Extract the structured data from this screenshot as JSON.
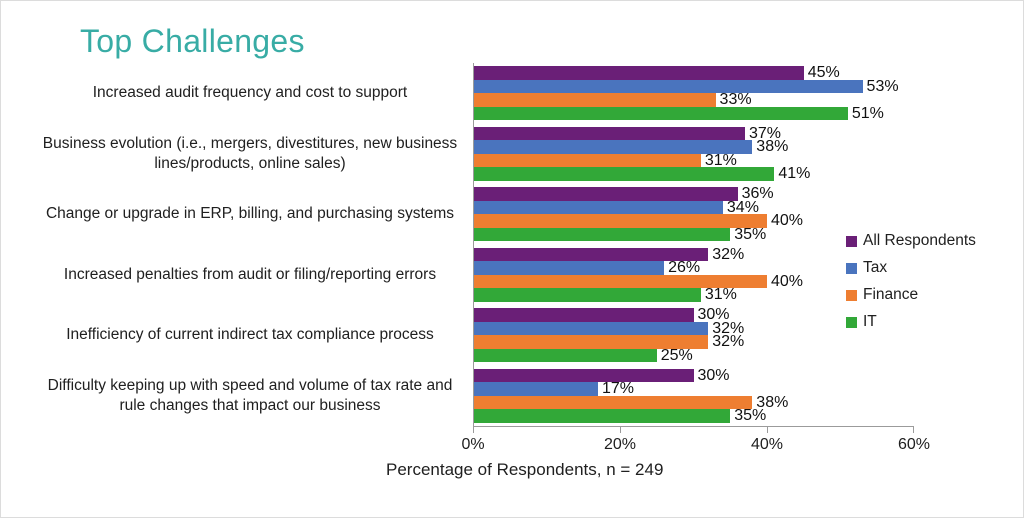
{
  "slide": {
    "title": "Top Challenges",
    "title_color": "#38ACA5",
    "background_color": "#ffffff",
    "axis_color": "#9b9b9b"
  },
  "chart_data": {
    "type": "bar",
    "orientation": "horizontal",
    "title": "Top Challenges",
    "xlabel": "Percentage of Respondents,  n = 249",
    "xlim": [
      0,
      60
    ],
    "x_ticks": [
      "0%",
      "20%",
      "40%",
      "60%"
    ],
    "grid": false,
    "legend_position": "right",
    "value_suffix": "%",
    "categories": [
      "Increased audit frequency and cost to support",
      "Business evolution (i.e., mergers, divestitures, new business lines/products, online sales)",
      "Change or upgrade in ERP, billing, and purchasing systems",
      "Increased penalties from audit or filing/reporting errors",
      "Inefficiency of current indirect tax compliance process",
      "Difficulty keeping up with speed and volume of tax rate and rule changes that impact our business"
    ],
    "series": [
      {
        "name": "All Respondents",
        "color": "#6A1F77",
        "values": [
          45,
          37,
          36,
          32,
          30,
          30
        ]
      },
      {
        "name": "Tax",
        "color": "#4A74BE",
        "values": [
          53,
          38,
          34,
          26,
          32,
          17
        ]
      },
      {
        "name": "Finance",
        "color": "#EE7E31",
        "values": [
          33,
          31,
          40,
          40,
          32,
          38
        ]
      },
      {
        "name": "IT",
        "color": "#32A838",
        "values": [
          51,
          41,
          35,
          31,
          25,
          35
        ]
      }
    ]
  }
}
